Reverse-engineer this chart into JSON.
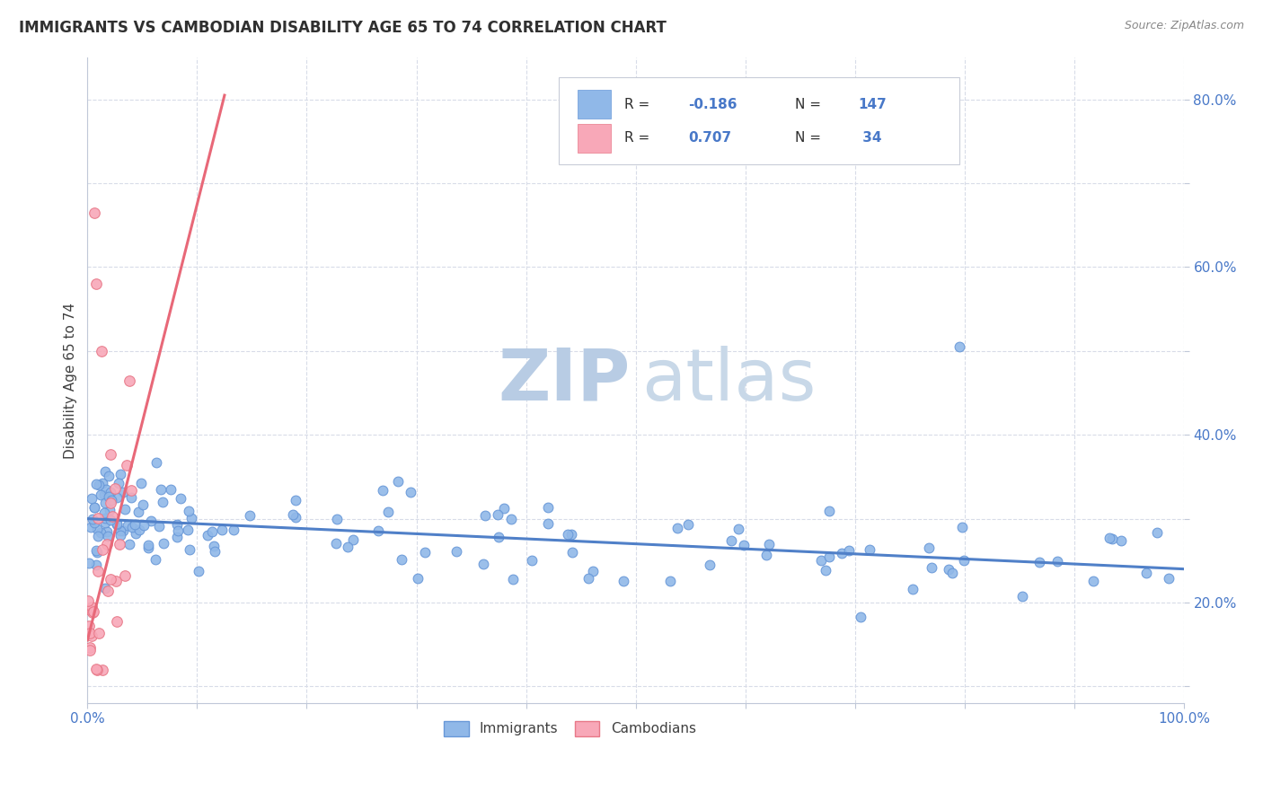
{
  "title": "IMMIGRANTS VS CAMBODIAN DISABILITY AGE 65 TO 74 CORRELATION CHART",
  "source_text": "Source: ZipAtlas.com",
  "ylabel": "Disability Age 65 to 74",
  "xlim": [
    0.0,
    1.0
  ],
  "ylim": [
    0.08,
    0.85
  ],
  "xtick_vals": [
    0.0,
    0.1,
    0.2,
    0.3,
    0.4,
    0.5,
    0.6,
    0.7,
    0.8,
    0.9,
    1.0
  ],
  "xticklabels": [
    "0.0%",
    "",
    "",
    "",
    "",
    "",
    "",
    "",
    "",
    "",
    "100.0%"
  ],
  "ytick_vals": [
    0.1,
    0.2,
    0.3,
    0.4,
    0.5,
    0.6,
    0.7,
    0.8
  ],
  "yticklabels": [
    "",
    "20.0%",
    "",
    "40.0%",
    "",
    "60.0%",
    "",
    "80.0%"
  ],
  "immigrants_color": "#90b8e8",
  "immigrants_edge": "#6898d8",
  "cambodians_color": "#f8a8b8",
  "cambodians_edge": "#e87888",
  "trendline_blue_color": "#5080c8",
  "trendline_blue_intercept": 0.3,
  "trendline_blue_slope": -0.06,
  "trendline_pink_color": "#e86878",
  "trendline_pink_intercept": 0.155,
  "trendline_pink_slope": 5.2,
  "watermark_zip_color": "#b8cce4",
  "watermark_atlas_color": "#c8d8e8",
  "title_color": "#303030",
  "axis_label_color": "#404040",
  "tick_label_color": "#4878c8",
  "grid_color": "#d8dce8",
  "background_color": "#ffffff",
  "legend_r_label_color": "#303030",
  "legend_value_color": "#4878c8",
  "legend_box_edge": "#c8ccd8",
  "bottom_legend_label_color": "#404040"
}
